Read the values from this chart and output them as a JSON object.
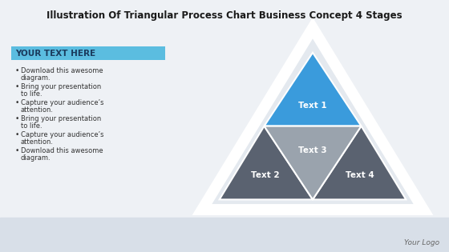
{
  "title": "Illustration Of Triangular Process Chart Business Concept 4 Stages",
  "title_fontsize": 8.5,
  "background_color": "#eef1f5",
  "text_box_label": "YOUR TEXT HERE",
  "text_box_bg": "#5bbde0",
  "text_box_text_color": "#1a3a5c",
  "bullet_points": [
    "Download this awesome\ndiagram.",
    "Bring your presentation\nto life.",
    "Capture your audience’s\nattention.",
    "Bring your presentation\nto life.",
    "Capture your audience’s\nattention.",
    "Download this awesome\ndiagram."
  ],
  "bullet_color": "#333333",
  "bullet_fontsize": 6.0,
  "segments": [
    {
      "label": "Text 1",
      "color": "#3a9bdc",
      "text_color": "#ffffff"
    },
    {
      "label": "Text 2",
      "color": "#5a6270",
      "text_color": "#ffffff"
    },
    {
      "label": "Text 3",
      "color": "#9aa3ad",
      "text_color": "#ffffff"
    },
    {
      "label": "Text 4",
      "color": "#5a6270",
      "text_color": "#ffffff"
    }
  ],
  "outer_triangle_color": "#e4e9ef",
  "outer_triangle_edge_color": "#ffffff",
  "outer_triangle_linewidth": 10,
  "inner_triangle_edge_color": "#ffffff",
  "logo_text": "Your Logo",
  "logo_fontsize": 6.5,
  "bottom_band_color": "#d8dfe8"
}
